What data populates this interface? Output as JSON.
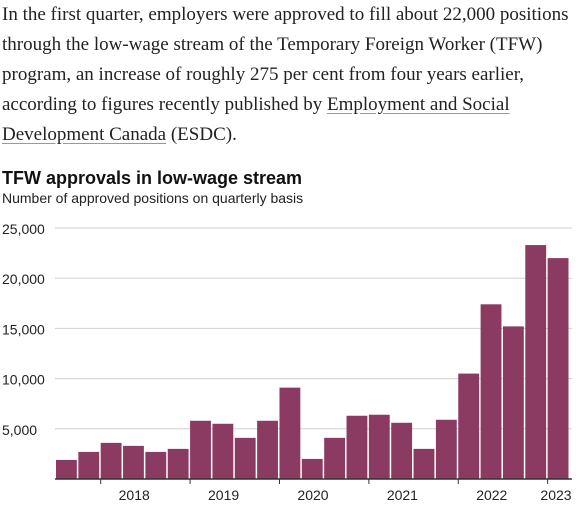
{
  "article": {
    "text_before": "In the first quarter, employers were approved to fill about 22,000 positions through the low-wage stream of the Temporary Foreign Worker (TFW) program, an increase of roughly 275 per cent from four years earlier, according to figures recently published by ",
    "link_text": "Employment and Social Development Canada",
    "text_after": " (ESDC)."
  },
  "colors": {
    "bar": "#8b3a62",
    "grid": "#d0d0d0",
    "axis": "#333333"
  },
  "chart_data": {
    "type": "bar",
    "title": "TFW approvals in low-wage stream",
    "subtitle": "Number of approved positions on quarterly basis",
    "ylim": [
      0,
      25000
    ],
    "yticks": [
      5000,
      10000,
      15000,
      20000,
      25000
    ],
    "ytick_labels": [
      "5,000",
      "10,000",
      "15,000",
      "20,000",
      "25,000"
    ],
    "year_labels": [
      "2018",
      "2019",
      "2020",
      "2021",
      "2022",
      "2023"
    ],
    "grid": true,
    "values": [
      1900,
      2700,
      3600,
      3300,
      2700,
      3000,
      5800,
      5500,
      4100,
      5800,
      9100,
      2000,
      4100,
      6300,
      6400,
      5600,
      3000,
      5900,
      10500,
      17400,
      15200,
      23300,
      22000
    ]
  }
}
